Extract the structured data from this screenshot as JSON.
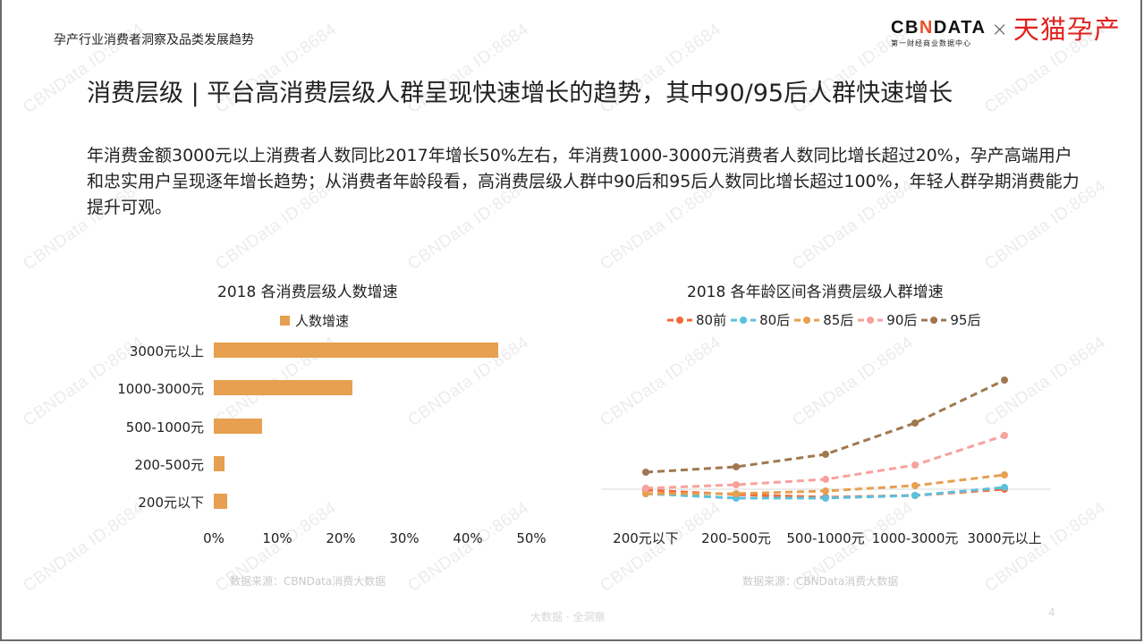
{
  "header": {
    "report_title": "孕产行业消费者洞察及品类发展趋势",
    "logo_cbn": "CBNDATA",
    "logo_cbn_sub": "第一财经商业数据中心",
    "logo_times": "×",
    "logo_tmall": "天猫孕产"
  },
  "page": {
    "heading": "消费层级 | 平台高消费层级人群呈现快速增长的趋势，其中90/95后人群快速增长",
    "summary": "年消费金额3000元以上消费者人数同比2017年增长50%左右，年消费1000-3000元消费者人数同比增长超过20%，孕产高端用户和忠实用户呈现逐年增长趋势；从消费者年龄段看，高消费层级人群中90后和95后人数同比增长超过100%，年轻人群孕期消费能力提升可观。"
  },
  "watermark": "CBNData ID:8684",
  "chart_data": [
    {
      "type": "bar",
      "orientation": "horizontal",
      "title": "2018 各消费层级人数增速",
      "legend": [
        "人数增速"
      ],
      "legend_position": "top",
      "categories": [
        "3000元以上",
        "1000-3000元",
        "500-1000元",
        "200-500元",
        "200元以下"
      ],
      "series": [
        {
          "name": "人数增速",
          "color": "#e6a050",
          "values": [
            44.8,
            21.8,
            7.6,
            1.7,
            2.1
          ]
        }
      ],
      "xlabel": "",
      "ylabel": "",
      "xlim": [
        0,
        50
      ],
      "x_ticks": [
        "0%",
        "10%",
        "20%",
        "30%",
        "40%",
        "50%"
      ],
      "grid": false,
      "source": "数据来源：CBNData消费大数据"
    },
    {
      "type": "line",
      "title": "2018 各年龄区间各消费层级人群增速",
      "legend_position": "top",
      "categories": [
        "200元以下",
        "200-500元",
        "500-1000元",
        "1000-3000元",
        "3000元以上"
      ],
      "note": "No y-axis labels shown; values are relative magnitudes above/below the zero baseline (estimated from pixel positions).",
      "series": [
        {
          "name": "80前",
          "color": "#f26b3a",
          "values": [
            -1,
            -6,
            -9,
            -7,
            0
          ]
        },
        {
          "name": "80后",
          "color": "#5bc0de",
          "values": [
            -5,
            -10,
            -10,
            -7,
            2
          ]
        },
        {
          "name": "85后",
          "color": "#e6a050",
          "values": [
            -5,
            -5,
            -2,
            4,
            16
          ]
        },
        {
          "name": "90后",
          "color": "#f7a29c",
          "values": [
            1,
            5,
            11,
            27,
            60
          ]
        },
        {
          "name": "95后",
          "color": "#a07850",
          "values": [
            19,
            25,
            39,
            74,
            122
          ]
        }
      ],
      "ylim": [
        -20,
        130
      ],
      "grid": false,
      "baseline": 0,
      "source": "数据来源：CBNData消费大数据"
    }
  ],
  "footer": {
    "tagline": "大数据 · 全洞察",
    "page_number": "4"
  }
}
